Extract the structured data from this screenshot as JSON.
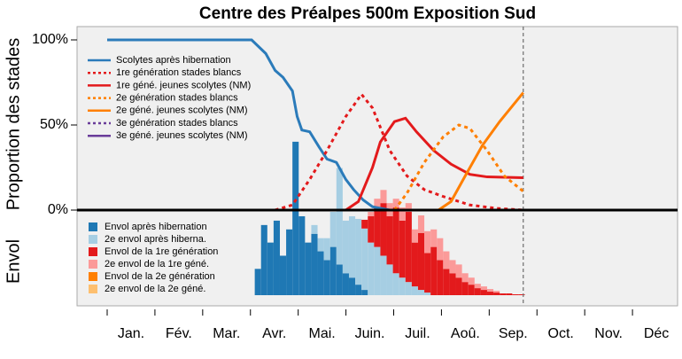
{
  "chart_data": [
    {
      "type": "line",
      "title": "Centre des Préalpes 500m Exposition Sud",
      "y_label": "Proportion des stades",
      "xlim": [
        0,
        365
      ],
      "ylim": [
        0,
        100
      ],
      "yticks": [
        {
          "value": 0,
          "label": "0%"
        },
        {
          "value": 50,
          "label": "50%"
        },
        {
          "value": 100,
          "label": "100%"
        }
      ],
      "reference_x": 265,
      "series": [
        {
          "name": "Scolytes après hibernation",
          "color": "#2b7bba",
          "dash": false,
          "x": [
            0,
            92,
            101,
            107,
            112,
            118,
            121,
            124,
            129,
            135,
            140,
            146,
            152,
            157,
            163,
            169,
            180
          ],
          "values": [
            100,
            100,
            92,
            82,
            78,
            70,
            55,
            47,
            46,
            37,
            30,
            28,
            18,
            12,
            6,
            2,
            0
          ]
        },
        {
          "name": "1re génération stades blancs",
          "color": "#e31a1c",
          "dash": true,
          "x": [
            107,
            118,
            129,
            140,
            152,
            162,
            169,
            180,
            191,
            202,
            214,
            231,
            248,
            265
          ],
          "values": [
            0,
            3,
            18,
            35,
            55,
            68,
            60,
            35,
            20,
            12,
            8,
            3,
            1,
            0
          ]
        },
        {
          "name": "1re géné. jeunes scolytes (NM)",
          "color": "#e31a1c",
          "dash": false,
          "x": [
            152,
            160,
            169,
            174,
            183,
            190,
            197,
            208,
            219,
            231,
            242,
            265
          ],
          "values": [
            0,
            5,
            25,
            40,
            52,
            54,
            46,
            35,
            27,
            21,
            19.5,
            19
          ]
        },
        {
          "name": "2e génération stades blancs",
          "color": "#ff7f00",
          "dash": true,
          "x": [
            183,
            191,
            202,
            214,
            224,
            231,
            242,
            253,
            265
          ],
          "values": [
            0,
            10,
            28,
            43,
            50,
            48,
            35,
            20,
            11
          ]
        },
        {
          "name": "2e géné. jeunes scolytes (NM)",
          "color": "#ff7f00",
          "dash": false,
          "x": [
            211,
            219,
            228,
            239,
            250,
            265
          ],
          "values": [
            0,
            5,
            20,
            38,
            52,
            69
          ]
        },
        {
          "name": "3e génération stades blancs",
          "color": "#6a3d9a",
          "dash": true,
          "x": [],
          "values": []
        },
        {
          "name": "3e géné. jeunes scolytes (NM)",
          "color": "#6a3d9a",
          "dash": false,
          "x": [],
          "values": []
        }
      ]
    },
    {
      "type": "bar",
      "y_label": "Envol",
      "categories": [
        "Jan.",
        "Fév.",
        "Mar.",
        "Avr.",
        "Mai.",
        "Juin.",
        "Juil.",
        "Aoû.",
        "Sep.",
        "Oct.",
        "Nov.",
        "Déc"
      ],
      "xlim": [
        0,
        365
      ],
      "ylim": [
        0,
        185
      ],
      "x": [
        96,
        100,
        104,
        108,
        112,
        116,
        120,
        124,
        128,
        132,
        136,
        140,
        144,
        148,
        152,
        156,
        160,
        164,
        168,
        172,
        176,
        180,
        184,
        188,
        192,
        196,
        200,
        204,
        208,
        212,
        216,
        220,
        224,
        228,
        232,
        236,
        240,
        244,
        248,
        252,
        256,
        260,
        264
      ],
      "series": [
        {
          "name": "Envol après hibernation",
          "color": "#1f78b4",
          "values": [
            30,
            80,
            60,
            85,
            45,
            75,
            175,
            90,
            60,
            70,
            50,
            40,
            55,
            35,
            25,
            20,
            12,
            6,
            0,
            0,
            0,
            0,
            0,
            0,
            0,
            0,
            0,
            0,
            0,
            0,
            0,
            0,
            0,
            0,
            0,
            0,
            0,
            0,
            0,
            0,
            0,
            0,
            0
          ]
        },
        {
          "name": "2e envol après hiberna.",
          "color": "#a6cee3",
          "values": [
            0,
            0,
            0,
            0,
            0,
            0,
            0,
            0,
            0,
            10,
            15,
            25,
            40,
            110,
            60,
            70,
            75,
            70,
            60,
            55,
            45,
            35,
            25,
            20,
            15,
            10,
            6,
            3,
            0,
            0,
            0,
            0,
            0,
            0,
            0,
            0,
            0,
            0,
            0,
            0,
            0,
            0,
            0
          ]
        },
        {
          "name": "Envol de la 1re génération",
          "color": "#e31a1c",
          "values": [
            0,
            0,
            0,
            0,
            0,
            0,
            0,
            0,
            0,
            0,
            0,
            0,
            0,
            0,
            0,
            0,
            0,
            10,
            30,
            45,
            60,
            55,
            75,
            65,
            80,
            50,
            65,
            45,
            55,
            40,
            30,
            25,
            20,
            15,
            12,
            8,
            6,
            4,
            3,
            2,
            2,
            1,
            1
          ]
        },
        {
          "name": "2e envol de la 1re géné.",
          "color": "#fb9a99",
          "values": [
            0,
            0,
            0,
            0,
            0,
            0,
            0,
            0,
            0,
            0,
            0,
            0,
            0,
            0,
            0,
            0,
            0,
            0,
            5,
            10,
            15,
            15,
            10,
            15,
            10,
            15,
            20,
            25,
            20,
            25,
            20,
            15,
            15,
            10,
            8,
            5,
            4,
            3,
            2,
            0,
            0,
            0,
            0
          ]
        },
        {
          "name": "Envol de la 2e génération",
          "color": "#ff7f00",
          "values": [
            0,
            0,
            0,
            0,
            0,
            0,
            0,
            0,
            0,
            0,
            0,
            0,
            0,
            0,
            0,
            0,
            0,
            0,
            0,
            0,
            0,
            0,
            0,
            0,
            0,
            0,
            0,
            0,
            0,
            0,
            0,
            0,
            0,
            0,
            0,
            0,
            0,
            0,
            0,
            0,
            0,
            0,
            0
          ]
        },
        {
          "name": "2e envol de la 2e géné.",
          "color": "#fdbf6f",
          "values": [
            0,
            0,
            0,
            0,
            0,
            0,
            0,
            0,
            0,
            0,
            0,
            0,
            0,
            0,
            0,
            0,
            0,
            0,
            0,
            0,
            0,
            0,
            0,
            0,
            0,
            0,
            0,
            0,
            0,
            0,
            0,
            0,
            0,
            0,
            0,
            0,
            0,
            0,
            0,
            0,
            0,
            0,
            0
          ]
        }
      ]
    }
  ]
}
